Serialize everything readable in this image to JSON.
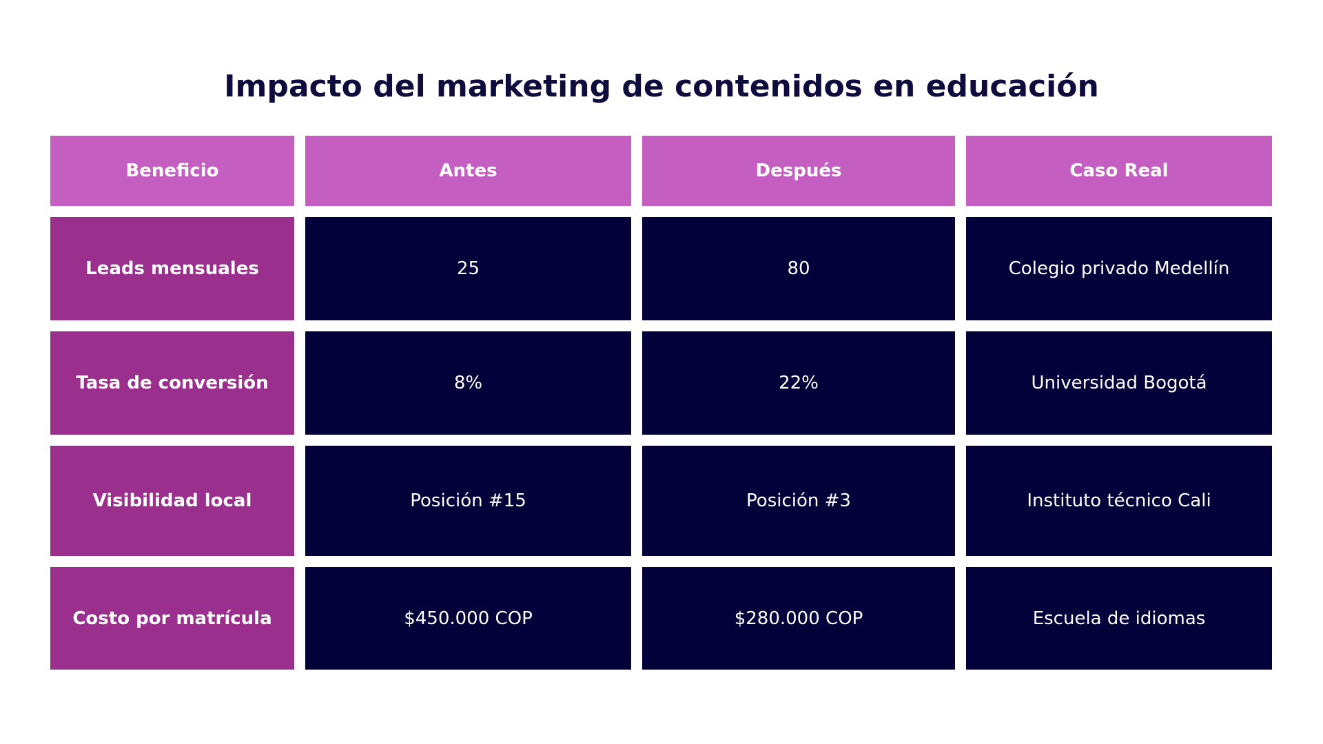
{
  "title": "Impacto del marketing de contenidos en educación",
  "table": {
    "headers": [
      "Beneficio",
      "Antes",
      "Después",
      "Caso Real"
    ],
    "rows": [
      [
        "Leads mensuales",
        "25",
        "80",
        "Colegio privado Medellín"
      ],
      [
        "Tasa de conversión",
        "8%",
        "22%",
        "Universidad Bogotá"
      ],
      [
        "Visibilidad local",
        "Posición #15",
        "Posición #3",
        "Instituto técnico Cali"
      ],
      [
        "Costo por matrícula",
        "$450.000 COP",
        "$280.000 COP",
        "Escuela de idiomas"
      ]
    ]
  }
}
